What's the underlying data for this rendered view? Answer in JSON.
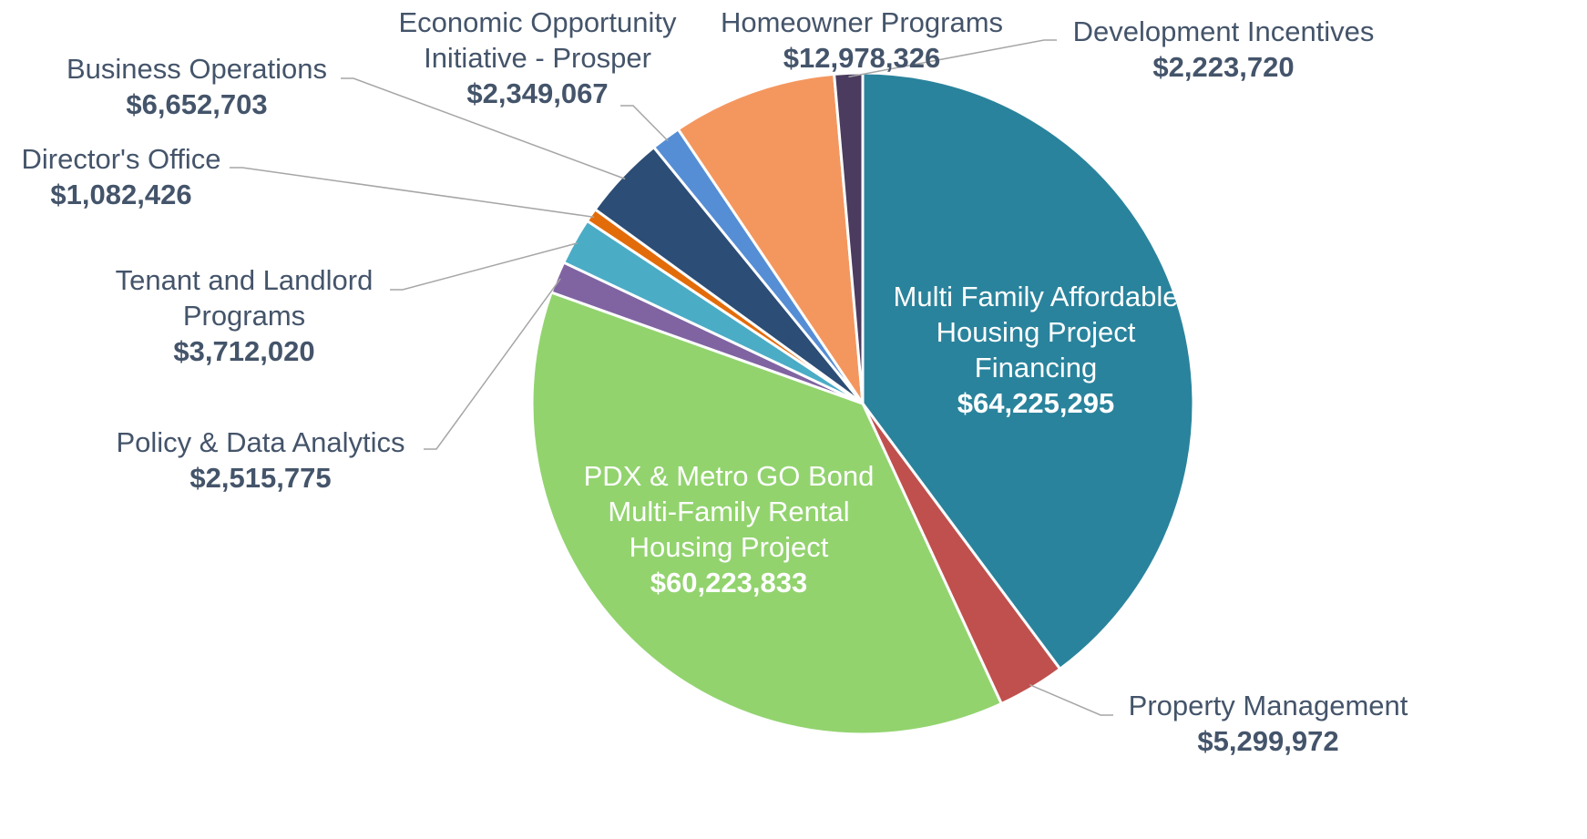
{
  "chart_data": {
    "type": "pie",
    "categories": [
      "Multi Family Affordable Housing Project Financing",
      "Property Management",
      "PDX & Metro GO Bond Multi-Family Rental Housing Project",
      "Policy & Data Analytics",
      "Tenant and Landlord Programs",
      "Director's Office",
      "Business Operations",
      "Economic Opportunity Initiative - Prosper",
      "Homeowner Programs",
      "Development Incentives"
    ],
    "values": [
      64225295,
      5299972,
      60223833,
      2515775,
      3712020,
      1082426,
      6652703,
      2349067,
      12978326,
      2223720
    ],
    "value_labels": [
      "$64,225,295",
      "$5,299,972",
      "$60,223,833",
      "$2,515,775",
      "$3,712,020",
      "$1,082,426",
      "$6,652,703",
      "$2,349,067",
      "$12,978,326",
      "$2,223,720"
    ],
    "colors": [
      "#2a839c",
      "#c0504d",
      "#92d36e",
      "#8064a2",
      "#4bacc6",
      "#e36c0a",
      "#2c4d75",
      "#558ed5",
      "#f4975f",
      "#4a3b5f"
    ]
  }
}
